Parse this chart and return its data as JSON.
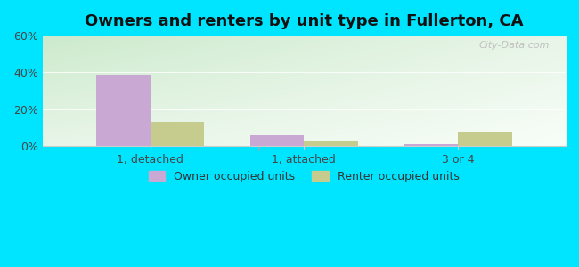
{
  "title": "Owners and renters by unit type in Fullerton, CA",
  "categories": [
    "1, detached",
    "1, attached",
    "3 or 4"
  ],
  "owner_values": [
    39,
    6,
    1
  ],
  "renter_values": [
    13,
    3,
    8
  ],
  "owner_color": "#c9a8d4",
  "renter_color": "#c5cc8e",
  "ylim": [
    0,
    60
  ],
  "yticks": [
    0,
    20,
    40,
    60
  ],
  "ytick_labels": [
    "0%",
    "20%",
    "40%",
    "60%"
  ],
  "bar_width": 0.35,
  "title_fontsize": 13,
  "tick_fontsize": 9,
  "legend_fontsize": 9,
  "watermark": "City-Data.com",
  "outer_bg": "#00e5ff"
}
